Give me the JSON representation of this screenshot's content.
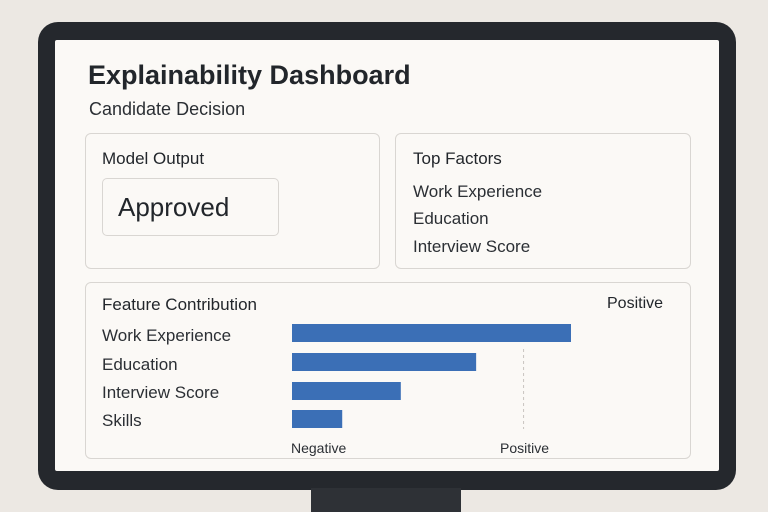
{
  "dashboard": {
    "title": "Explainability Dashboard",
    "subtitle": "Candidate Decision"
  },
  "model_output": {
    "label": "Model Output",
    "value": "Approved"
  },
  "top_factors": {
    "label": "Top Factors",
    "items": [
      "Work Experience",
      "Education",
      "Interview Score"
    ]
  },
  "chart_data": {
    "type": "bar",
    "orientation": "horizontal",
    "title": "Feature Contribution",
    "legend_label": "Positive",
    "categories": [
      "Work Experience",
      "Education",
      "Interview Score",
      "Skills"
    ],
    "values": [
      1.0,
      0.66,
      0.39,
      0.18
    ],
    "x_range": [
      0,
      1
    ],
    "x_labels": {
      "left": "Negative",
      "right": "Positive"
    },
    "reference_line_at": 0.83,
    "colors": {
      "bar": "#3b6fb6",
      "reference": "#c8c5c1"
    }
  }
}
